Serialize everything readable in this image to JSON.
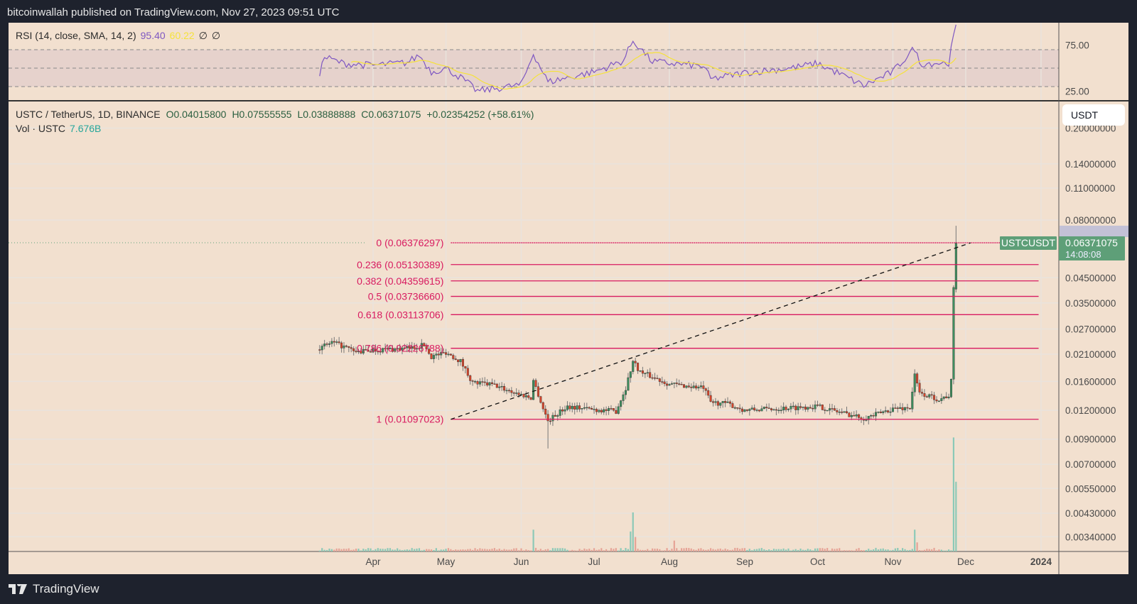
{
  "header": {
    "published": "bitcoinwallah published on TradingView.com, Nov 27, 2023 09:51 UTC"
  },
  "rsi": {
    "label": "RSI (14, close, SMA, 14, 2)",
    "value": "95.40",
    "ma_value": "60.22",
    "na1": "∅",
    "na2": "∅",
    "axis_ticks": [
      "75.00",
      "25.00"
    ],
    "levels": [
      70,
      50,
      30
    ],
    "line_color": "#7e57c2",
    "ma_color": "#f5e23b",
    "points": [
      [
        "2023-03-10",
        45
      ],
      [
        "2023-03-12",
        62
      ],
      [
        "2023-03-20",
        55
      ],
      [
        "2023-04-01",
        53
      ],
      [
        "2023-04-15",
        56
      ],
      [
        "2023-04-20",
        64
      ],
      [
        "2023-04-25",
        46
      ],
      [
        "2023-05-01",
        50
      ],
      [
        "2023-05-08",
        38
      ],
      [
        "2023-05-14",
        25
      ],
      [
        "2023-06-01",
        32
      ],
      [
        "2023-06-06",
        66
      ],
      [
        "2023-06-12",
        35
      ],
      [
        "2023-07-01",
        46
      ],
      [
        "2023-07-13",
        58
      ],
      [
        "2023-07-17",
        80
      ],
      [
        "2023-07-25",
        57
      ],
      [
        "2023-08-15",
        52
      ],
      [
        "2023-08-18",
        38
      ],
      [
        "2023-09-01",
        45
      ],
      [
        "2023-09-20",
        50
      ],
      [
        "2023-10-01",
        55
      ],
      [
        "2023-10-10",
        44
      ],
      [
        "2023-10-20",
        31
      ],
      [
        "2023-11-01",
        46
      ],
      [
        "2023-11-10",
        72
      ],
      [
        "2023-11-12",
        55
      ],
      [
        "2023-11-24",
        56
      ],
      [
        "2023-11-26",
        84
      ],
      [
        "2023-11-27",
        95.4
      ]
    ]
  },
  "symbol": {
    "title": "USTC / TetherUS, 1D, BINANCE",
    "open": "O0.04015800",
    "high": "H0.07555555",
    "low": "L0.03888888",
    "close": "C0.06371075",
    "change": "+0.02354252 (+58.61%)",
    "vol_label": "Vol · USTC",
    "vol_value": "7.676B"
  },
  "currency_button": "USDT",
  "chart_data": {
    "type": "candlestick",
    "scale": "log",
    "grid": true,
    "x_ticks": [
      [
        "Apr",
        "2023-04-01"
      ],
      [
        "May",
        "2023-05-01"
      ],
      [
        "Jun",
        "2023-06-01"
      ],
      [
        "Jul",
        "2023-07-01"
      ],
      [
        "Aug",
        "2023-08-01"
      ],
      [
        "Sep",
        "2023-09-01"
      ],
      [
        "Oct",
        "2023-10-01"
      ],
      [
        "Nov",
        "2023-11-01"
      ],
      [
        "Dec",
        "2023-12-01"
      ],
      [
        "2024",
        "2024-01-01"
      ]
    ],
    "y_ticks": [
      "0.20000000",
      "0.14000000",
      "0.11000000",
      "0.08000000",
      "0.04500000",
      "0.03500000",
      "0.02700000",
      "0.02100000",
      "0.01600000",
      "0.01200000",
      "0.00900000",
      "0.00700000",
      "0.00550000",
      "0.00430000",
      "0.00340000"
    ],
    "close_points": [
      [
        "2023-03-10",
        0.0222
      ],
      [
        "2023-03-15",
        0.0236
      ],
      [
        "2023-03-20",
        0.0226
      ],
      [
        "2023-03-25",
        0.0214
      ],
      [
        "2023-04-01",
        0.0219
      ],
      [
        "2023-04-15",
        0.0222
      ],
      [
        "2023-04-22",
        0.023
      ],
      [
        "2023-04-25",
        0.0205
      ],
      [
        "2023-05-01",
        0.0214
      ],
      [
        "2023-05-07",
        0.0196
      ],
      [
        "2023-05-12",
        0.0158
      ],
      [
        "2023-05-20",
        0.0155
      ],
      [
        "2023-06-01",
        0.014
      ],
      [
        "2023-06-05",
        0.0136
      ],
      [
        "2023-06-06",
        0.0162
      ],
      [
        "2023-06-10",
        0.0122
      ],
      [
        "2023-06-12",
        0.0108
      ],
      [
        "2023-06-20",
        0.0125
      ],
      [
        "2023-07-01",
        0.0121
      ],
      [
        "2023-07-10",
        0.0119
      ],
      [
        "2023-07-14",
        0.015
      ],
      [
        "2023-07-17",
        0.0196
      ],
      [
        "2023-07-20",
        0.0176
      ],
      [
        "2023-08-01",
        0.0156
      ],
      [
        "2023-08-15",
        0.015
      ],
      [
        "2023-08-18",
        0.013
      ],
      [
        "2023-08-25",
        0.0128
      ],
      [
        "2023-09-01",
        0.012
      ],
      [
        "2023-10-01",
        0.0125
      ],
      [
        "2023-10-10",
        0.0118
      ],
      [
        "2023-10-20",
        0.0111
      ],
      [
        "2023-10-25",
        0.0115
      ],
      [
        "2023-11-01",
        0.0122
      ],
      [
        "2023-11-08",
        0.0123
      ],
      [
        "2023-11-10",
        0.017
      ],
      [
        "2023-11-12",
        0.0142
      ],
      [
        "2023-11-20",
        0.0134
      ],
      [
        "2023-11-24",
        0.0139
      ],
      [
        "2023-11-25",
        0.016
      ],
      [
        "2023-11-26",
        0.040158
      ],
      [
        "2023-11-27",
        0.06371075
      ]
    ],
    "last_candle": {
      "date": "2023-11-27",
      "open": 0.040158,
      "high": 0.07555555,
      "low": 0.03888888,
      "close": 0.06371075
    },
    "notable_lows": [
      [
        "2023-06-12",
        0.0082
      ]
    ],
    "volume_billions": {
      "baseline": 0.25,
      "spikes": [
        [
          "2023-06-06",
          2.4
        ],
        [
          "2023-07-16",
          2.2
        ],
        [
          "2023-07-17",
          4.3
        ],
        [
          "2023-07-18",
          1.6
        ],
        [
          "2023-08-03",
          1.2
        ],
        [
          "2023-11-10",
          2.4
        ],
        [
          "2023-11-11",
          1.0
        ],
        [
          "2023-11-26",
          12.55
        ],
        [
          "2023-11-27",
          7.676
        ]
      ]
    },
    "up_color": "#3e8f5f",
    "down_color": "#d9452b"
  },
  "fib": {
    "color": "#d81b60",
    "start_date": "2023-05-03",
    "end_date": "2023-12-31",
    "levels": [
      {
        "label": "0 (0.06376297)",
        "price": 0.06376297
      },
      {
        "label": "0.236 (0.05130389)",
        "price": 0.05130389
      },
      {
        "label": "0.382 (0.04359615)",
        "price": 0.04359615
      },
      {
        "label": "0.5 (0.03736660)",
        "price": 0.0373666
      },
      {
        "label": "0.618 (0.03113706)",
        "price": 0.03113706
      },
      {
        "label": "0.786 (0.02226788)",
        "price": 0.02226788
      },
      {
        "label": "1 (0.01097023)",
        "price": 0.01097023
      }
    ],
    "trend_from": [
      "2023-05-03",
      0.01097023
    ],
    "trend_to": [
      "2023-12-03",
      0.0637
    ]
  },
  "price_label": {
    "symbol": "USTCUSDT",
    "price": "0.06371075",
    "countdown": "14:08:08",
    "color": "#5e9f78"
  },
  "footer": {
    "brand": "TradingView"
  }
}
